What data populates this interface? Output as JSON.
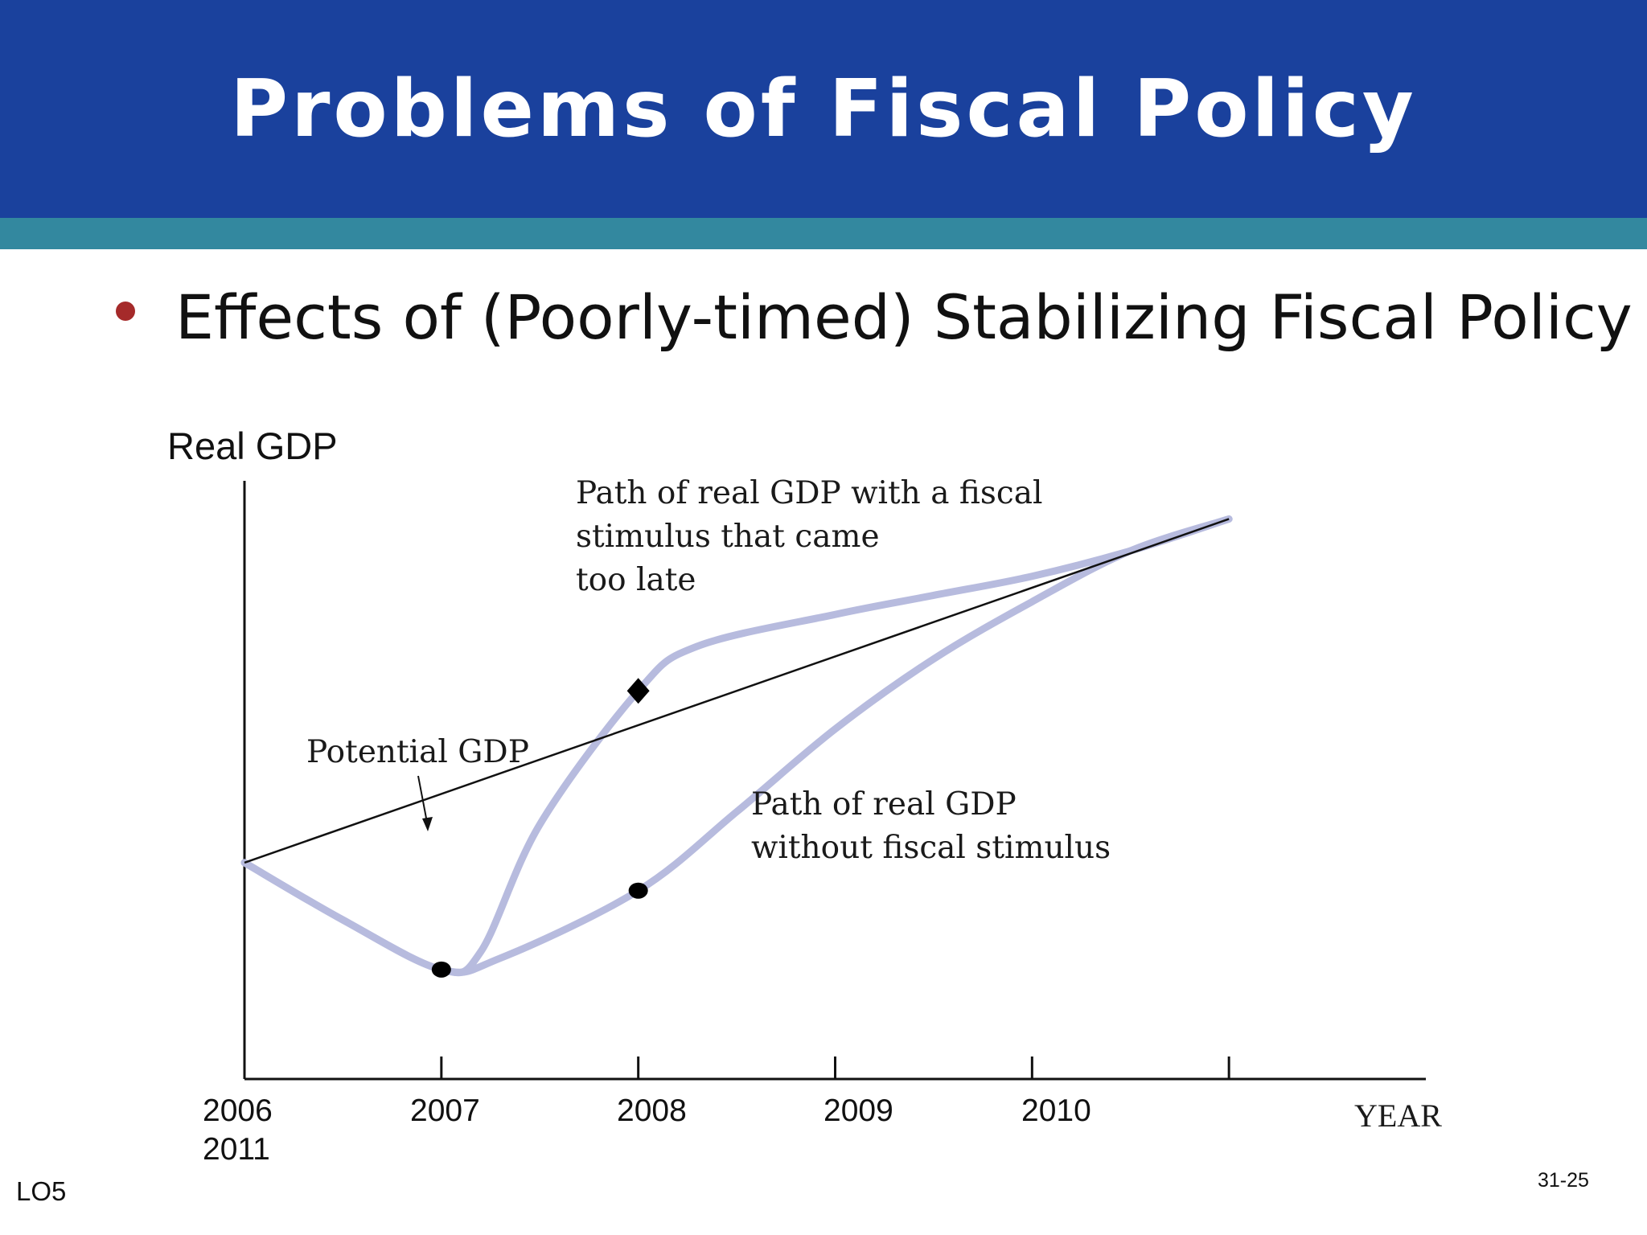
{
  "slide": {
    "title": "Problems of Fiscal Policy",
    "bullet": "Effects of (Poorly-timed) Stabilizing Fiscal Policy",
    "footer_left": "LO5",
    "footer_right": "31-25"
  },
  "colors": {
    "header": "#1a419d",
    "band": "#33889f",
    "bullet": "#a52a2a",
    "curve": "#b7bbde",
    "line": "#111111"
  },
  "chart_data": {
    "type": "line",
    "ylabel": "Real GDP",
    "xlabel": "YEAR",
    "x_tick_labels": [
      "2006",
      "2007",
      "2008",
      "2009",
      "2010",
      "2011"
    ],
    "annotations": {
      "late_stimulus": [
        "Path of real GDP with a fiscal",
        "stimulus that came",
        "too late"
      ],
      "potential": "Potential GDP",
      "no_stimulus": [
        "Path of real GDP",
        "without fiscal stimulus"
      ]
    },
    "series": [
      {
        "name": "Potential GDP",
        "x": [
          2006,
          2011
        ],
        "y": [
          100,
          127
        ]
      },
      {
        "name": "Path of real GDP without fiscal stimulus",
        "x": [
          2006,
          2006.5,
          2007,
          2007.3,
          2008,
          2008.5,
          2009,
          2009.5,
          2010,
          2010.5,
          2011
        ],
        "y": [
          100,
          95.5,
          91.6,
          92.5,
          97.8,
          104,
          110.5,
          116,
          120.5,
          124.5,
          127
        ]
      },
      {
        "name": "Path of real GDP with a fiscal stimulus that came too late",
        "x": [
          2006,
          2006.5,
          2007,
          2007.2,
          2007.5,
          2008,
          2008.3,
          2009,
          2009.5,
          2010,
          2010.5,
          2011
        ],
        "y": [
          100,
          95.5,
          91.6,
          93,
          103,
          113.5,
          117,
          119.5,
          121,
          122.5,
          124.5,
          127
        ]
      }
    ],
    "markers": [
      {
        "shape": "circle",
        "x": 2007,
        "y": 91.6
      },
      {
        "shape": "circle",
        "x": 2008,
        "y": 97.8
      },
      {
        "shape": "diamond",
        "x": 2008,
        "y": 113.5
      }
    ],
    "axes": {
      "x_range": [
        2006,
        2012
      ],
      "y_range": [
        83,
        130
      ],
      "grid": false
    }
  }
}
